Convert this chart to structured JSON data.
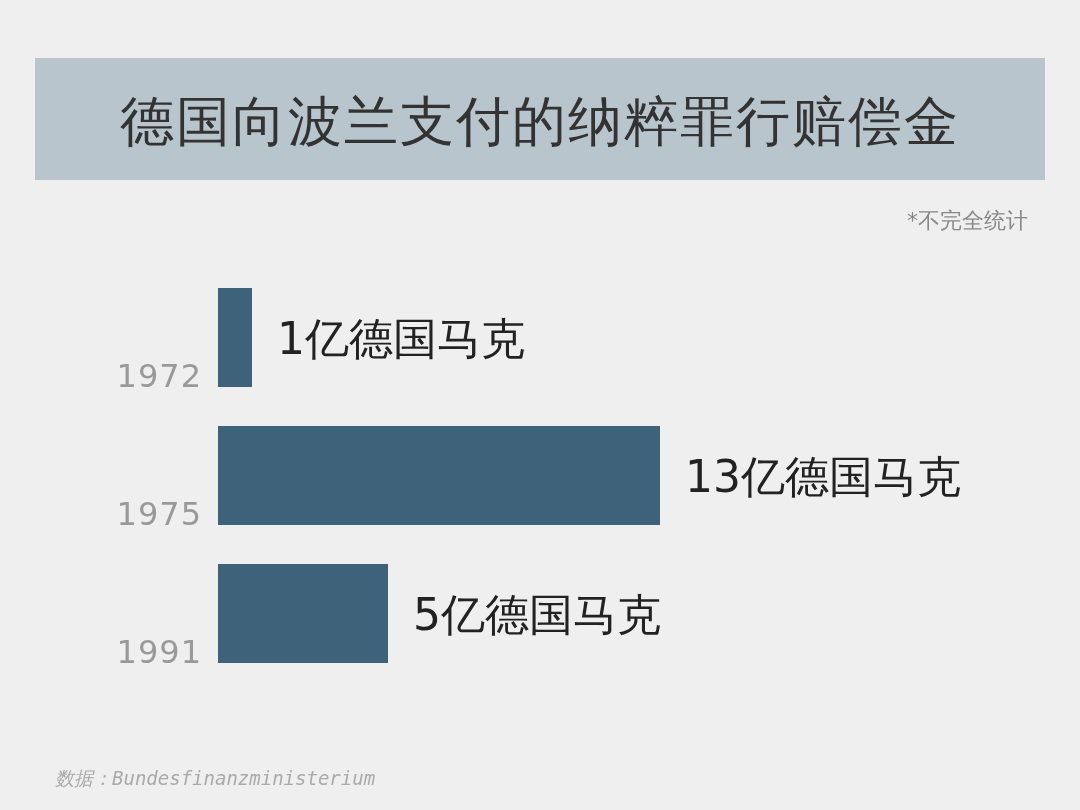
{
  "chart_data": {
    "type": "bar",
    "orientation": "horizontal",
    "title": "德国向波兰支付的纳粹罪行赔偿金",
    "categories": [
      "1972",
      "1975",
      "1991"
    ],
    "values": [
      1,
      13,
      5
    ],
    "value_labels": [
      "1亿德国马克",
      "13亿德国马克",
      "5亿德国马克"
    ],
    "color": "#3d6279",
    "annotations": [
      "*不完全统计",
      "数据：Bundesfinanzministerium"
    ]
  }
}
